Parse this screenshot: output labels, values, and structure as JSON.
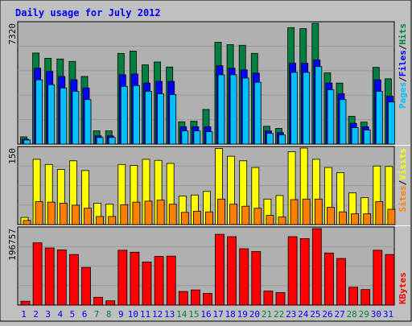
{
  "chart_data": {
    "type": "bar",
    "title": "Daily usage for July 2012",
    "categories": [
      "1",
      "2",
      "3",
      "4",
      "5",
      "6",
      "7",
      "8",
      "9",
      "10",
      "11",
      "12",
      "13",
      "14",
      "15",
      "16",
      "17",
      "18",
      "19",
      "20",
      "21",
      "22",
      "23",
      "24",
      "25",
      "26",
      "27",
      "28",
      "29",
      "30",
      "31"
    ],
    "weekend_days": [
      "7",
      "8",
      "14",
      "15",
      "21",
      "22",
      "28",
      "29"
    ],
    "panels": [
      {
        "id": "hits-files-pages",
        "ymax_label": "7320",
        "ylim": [
          0,
          7320
        ],
        "series": [
          {
            "name": "Hits",
            "color": "#008040",
            "values": [
              440,
              5520,
              5200,
              5160,
              5010,
              4100,
              800,
              800,
              5500,
              5640,
              4800,
              4980,
              4670,
              1350,
              1380,
              2100,
              6180,
              6030,
              5990,
              5500,
              1080,
              950,
              7060,
              7000,
              7320,
              4320,
              3700,
              1690,
              1330,
              4650,
              3960
            ]
          },
          {
            "name": "Files",
            "color": "#0000ff",
            "values": [
              300,
              4600,
              4400,
              4100,
              3900,
              3400,
              500,
              500,
              4200,
              4250,
              3700,
              3800,
              3800,
              1050,
              1050,
              1050,
              4750,
              4600,
              4500,
              4300,
              800,
              700,
              4900,
              4900,
              5100,
              3700,
              3050,
              1260,
              1050,
              3900,
              2900
            ]
          },
          {
            "name": "Pages",
            "color": "#00c0ff",
            "values": [
              250,
              3900,
              3600,
              3400,
              3200,
              2700,
              400,
              400,
              3500,
              3550,
              3200,
              3050,
              3000,
              800,
              800,
              750,
              4200,
              4200,
              4000,
              3750,
              650,
              550,
              4350,
              4350,
              4700,
              3300,
              2700,
              1000,
              850,
              3200,
              2550
            ]
          }
        ]
      },
      {
        "id": "visits-sites",
        "ymax_label": "150",
        "ylim": [
          0,
          150
        ],
        "series": [
          {
            "name": "Visits",
            "color": "#ffff00",
            "values": [
              14,
              128,
              118,
              108,
              125,
              106,
              42,
              40,
              118,
              116,
              128,
              126,
              120,
              56,
              58,
              65,
              149,
              134,
              125,
              112,
              50,
              57,
              143,
              150,
              128,
              112,
              102,
              62,
              53,
              115,
              114
            ]
          },
          {
            "name": "Sites",
            "color": "#ff8000",
            "values": [
              8,
              45,
              44,
              42,
              38,
              32,
              16,
              16,
              39,
              44,
              46,
              48,
              40,
              24,
              26,
              25,
              50,
              40,
              36,
              32,
              18,
              15,
              49,
              50,
              50,
              34,
              25,
              21,
              21,
              45,
              30
            ]
          }
        ]
      },
      {
        "id": "kbytes",
        "ymax_label": "196757",
        "ylim": [
          0,
          196757
        ],
        "series": [
          {
            "name": "KBytes",
            "color": "#ff0000",
            "values": [
              10000,
              160000,
              147000,
              142000,
              130000,
              97000,
              20000,
              11000,
              141000,
              136000,
              111000,
              125000,
              126000,
              35000,
              39000,
              30000,
              182000,
              176000,
              145000,
              138000,
              36000,
              32000,
              176000,
              171000,
              196757,
              134000,
              120000,
              46000,
              40000,
              141000,
              130000
            ]
          }
        ]
      }
    ],
    "legend": [
      {
        "panel": 0,
        "parts": [
          "Pages",
          "/",
          "Files",
          "/",
          "Hits"
        ]
      },
      {
        "panel": 1,
        "parts": [
          "Sites",
          "/",
          "Visits"
        ]
      },
      {
        "panel": 2,
        "parts": [
          "KBytes"
        ]
      }
    ],
    "colors": {
      "background": "#c0c0c0",
      "plot_background": "#b0b0b0",
      "title": "#0000ff",
      "weekday_label": "#0000ff",
      "weekend_label": "#008040",
      "separator": "#ffffff",
      "legend_slash": "#000000"
    }
  }
}
